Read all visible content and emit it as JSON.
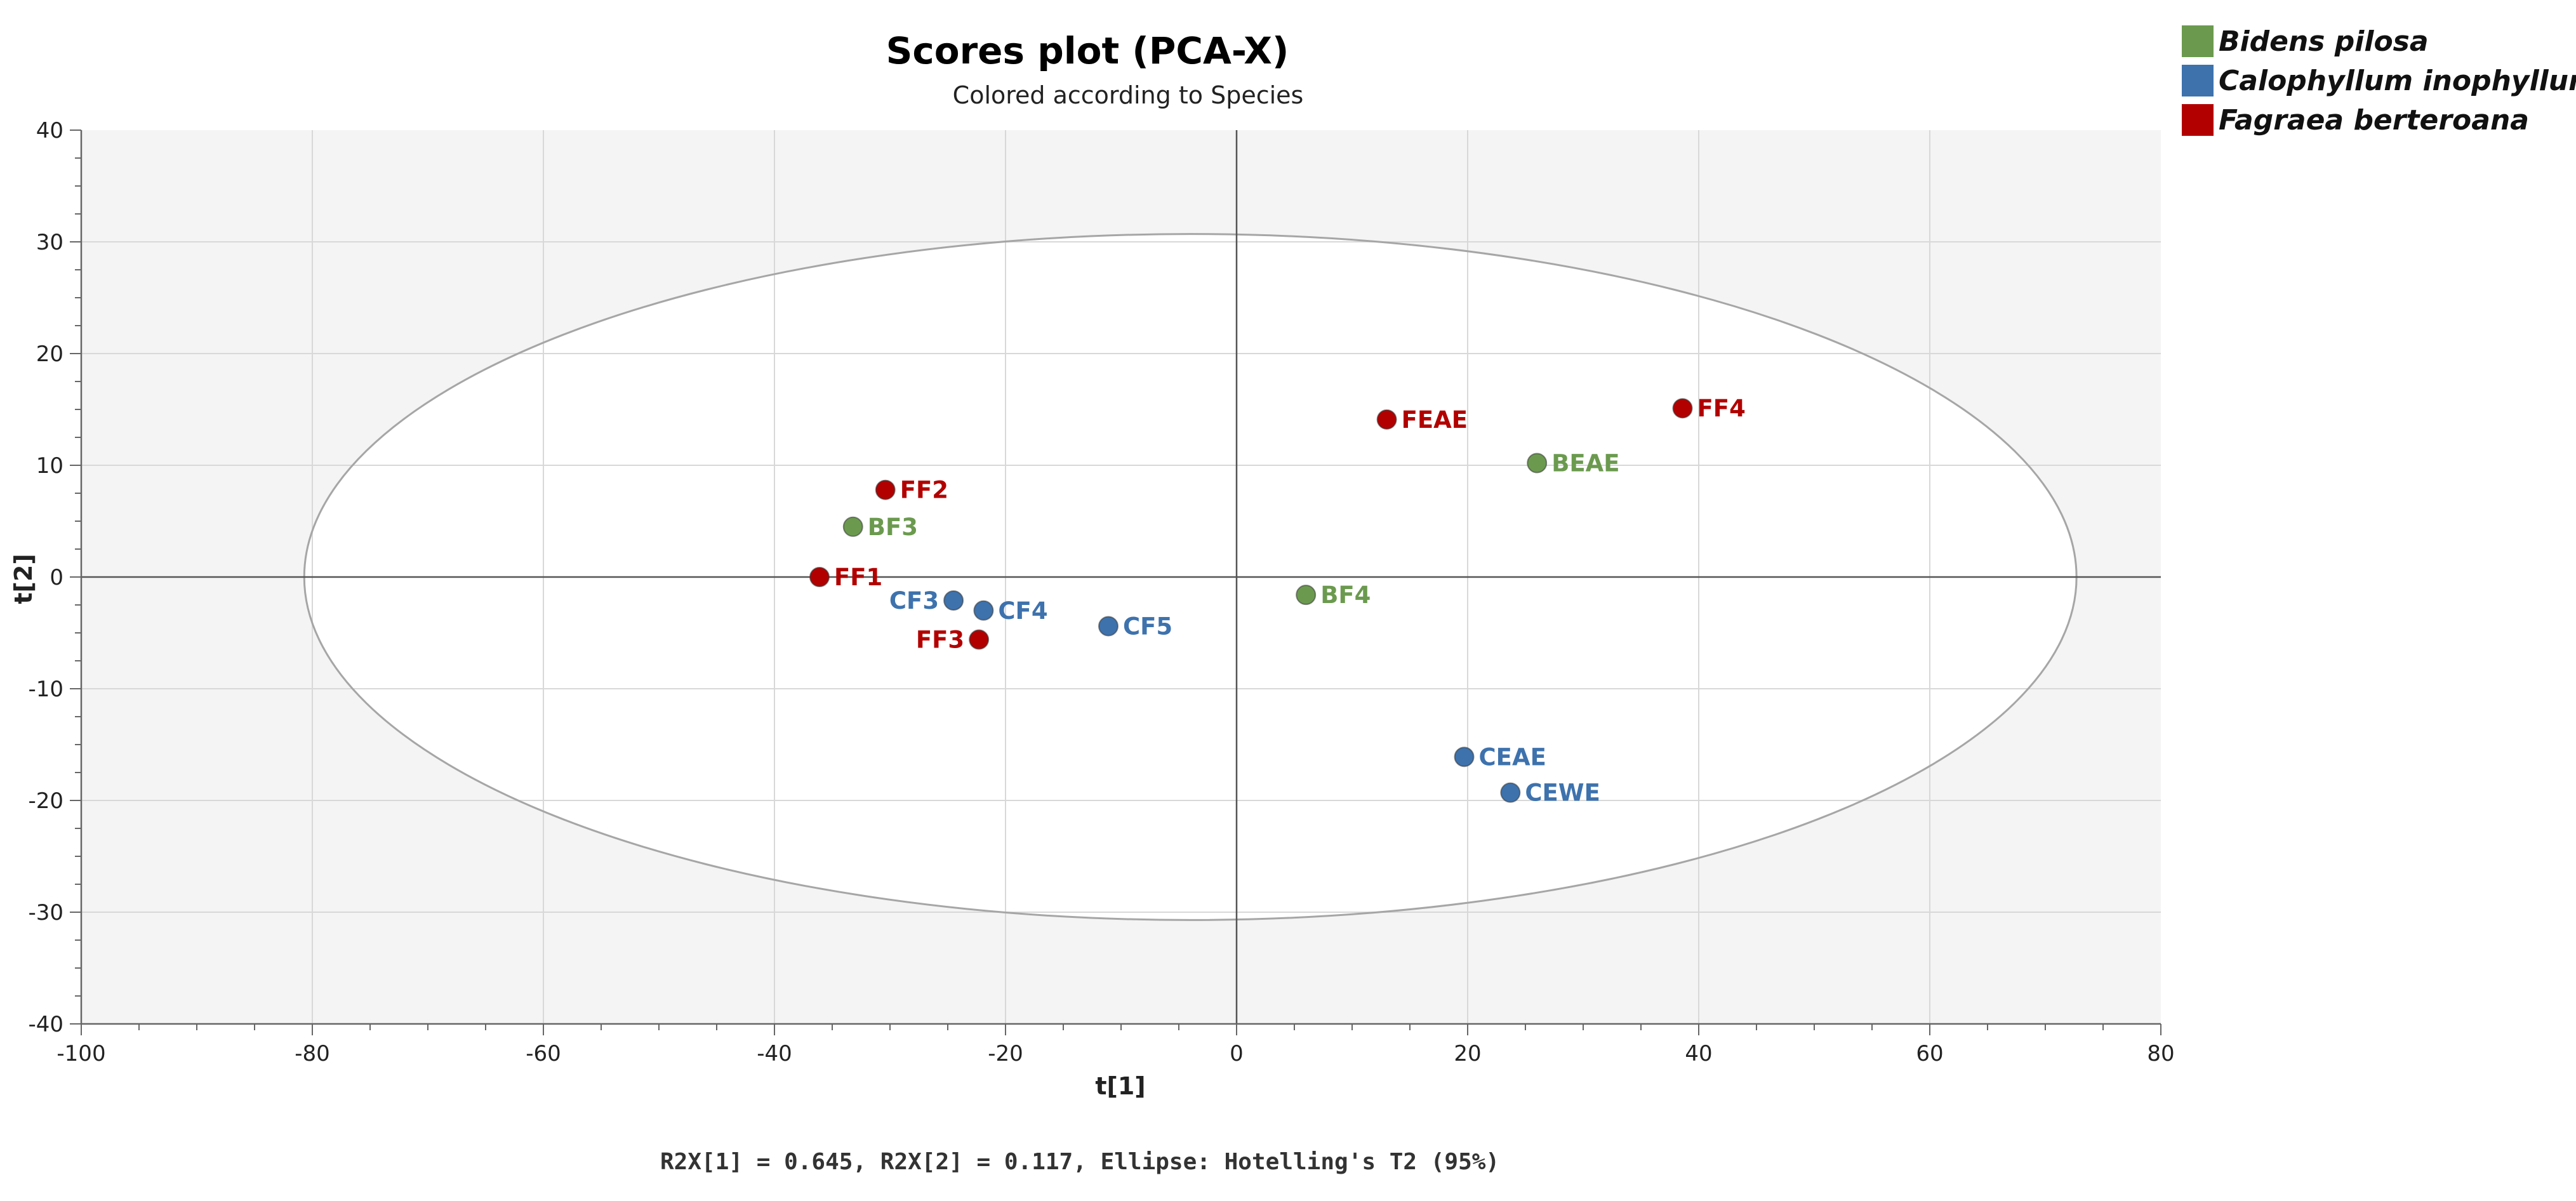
{
  "chart_data": {
    "type": "scatter",
    "title": "Scores plot (PCA-X)",
    "subtitle": "Colored according to Species",
    "xlabel": "t[1]",
    "ylabel": "t[2]",
    "xlim": [
      -100,
      80
    ],
    "ylim": [
      -40,
      40
    ],
    "xticks": [
      "-100",
      "-80",
      "-60",
      "-40",
      "-20",
      "0",
      "20",
      "40",
      "60",
      "80"
    ],
    "yticks": [
      "40",
      "30",
      "20",
      "10",
      "0",
      "-10",
      "-20",
      "-30",
      "-40"
    ],
    "grid": true,
    "legend_position": "top-right",
    "ellipse": {
      "label": "Hotelling's T2 (95%)",
      "center": [
        -4,
        0
      ],
      "x_semi": 76.7,
      "y_semi": 30.7
    },
    "series": [
      {
        "name": "Bidens pilosa",
        "color": "#6b9a4f",
        "points": [
          {
            "label": "BF3",
            "x": -33.2,
            "y": 4.5
          },
          {
            "label": "BF4",
            "x": 6.0,
            "y": -1.6
          },
          {
            "label": "BEAE",
            "x": 26.0,
            "y": 10.2
          }
        ]
      },
      {
        "name": "Calophyllum inophyllum",
        "color": "#3d72ad",
        "points": [
          {
            "label": "CF3",
            "x": -24.5,
            "y": -2.1
          },
          {
            "label": "CF4",
            "x": -21.9,
            "y": -3.0
          },
          {
            "label": "CF5",
            "x": -11.1,
            "y": -4.4
          },
          {
            "label": "CEAE",
            "x": 19.7,
            "y": -16.1
          },
          {
            "label": "CEWE",
            "x": 23.7,
            "y": -19.3
          }
        ]
      },
      {
        "name": "Fagraea berteroana",
        "color": "#b20000",
        "points": [
          {
            "label": "FF1",
            "x": -36.1,
            "y": 0.0
          },
          {
            "label": "FF2",
            "x": -30.4,
            "y": 7.8
          },
          {
            "label": "FF3",
            "x": -22.3,
            "y": -5.6
          },
          {
            "label": "FEAE",
            "x": 13.0,
            "y": 14.1
          },
          {
            "label": "FF4",
            "x": 38.6,
            "y": 15.1
          }
        ]
      }
    ],
    "footer": "R2X[1] = 0.645, R2X[2] = 0.117, Ellipse: Hotelling's T2 (95%)"
  }
}
